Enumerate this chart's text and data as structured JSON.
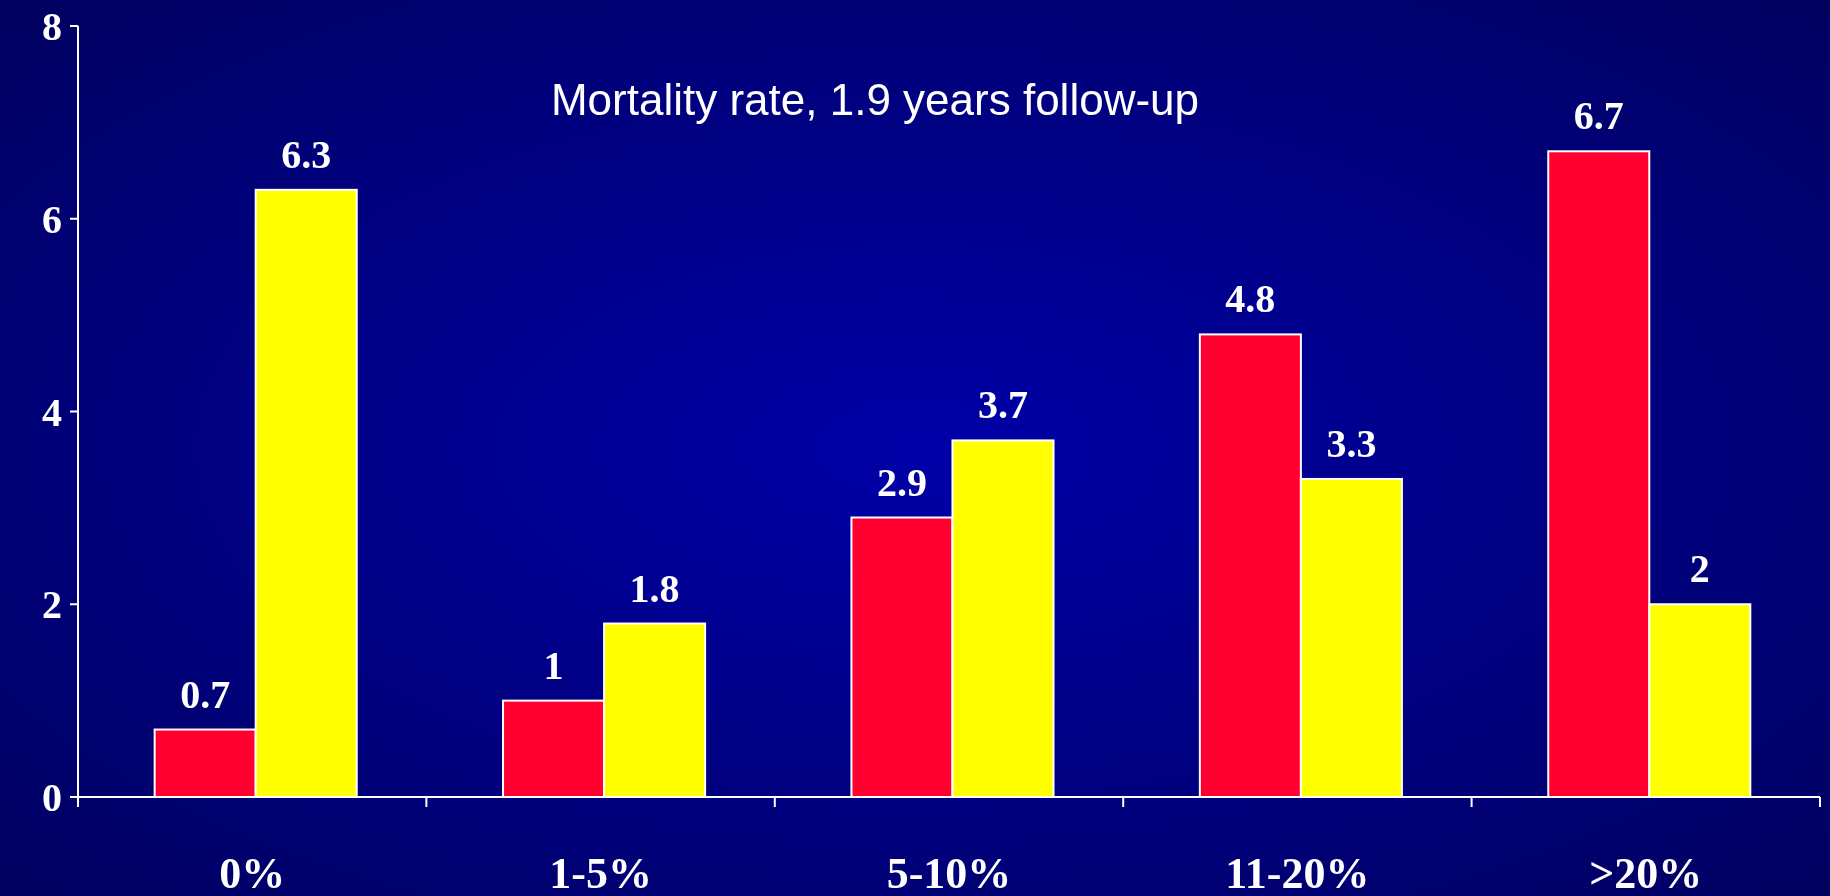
{
  "chart_data": {
    "type": "bar",
    "title": "Mortality rate, 1.9 years follow-up",
    "categories": [
      "0%",
      "1-5%",
      "5-10%",
      "11-20%",
      ">20%"
    ],
    "series": [
      {
        "color": "#ff0030",
        "values": [
          0.7,
          1,
          2.9,
          4.8,
          6.7
        ]
      },
      {
        "color": "#ffff00",
        "values": [
          6.3,
          1.8,
          3.7,
          3.3,
          2
        ]
      }
    ],
    "ylim": [
      0,
      8
    ],
    "yticks": [
      0,
      2,
      4,
      6,
      8
    ],
    "grid": false,
    "data_labels": true
  }
}
